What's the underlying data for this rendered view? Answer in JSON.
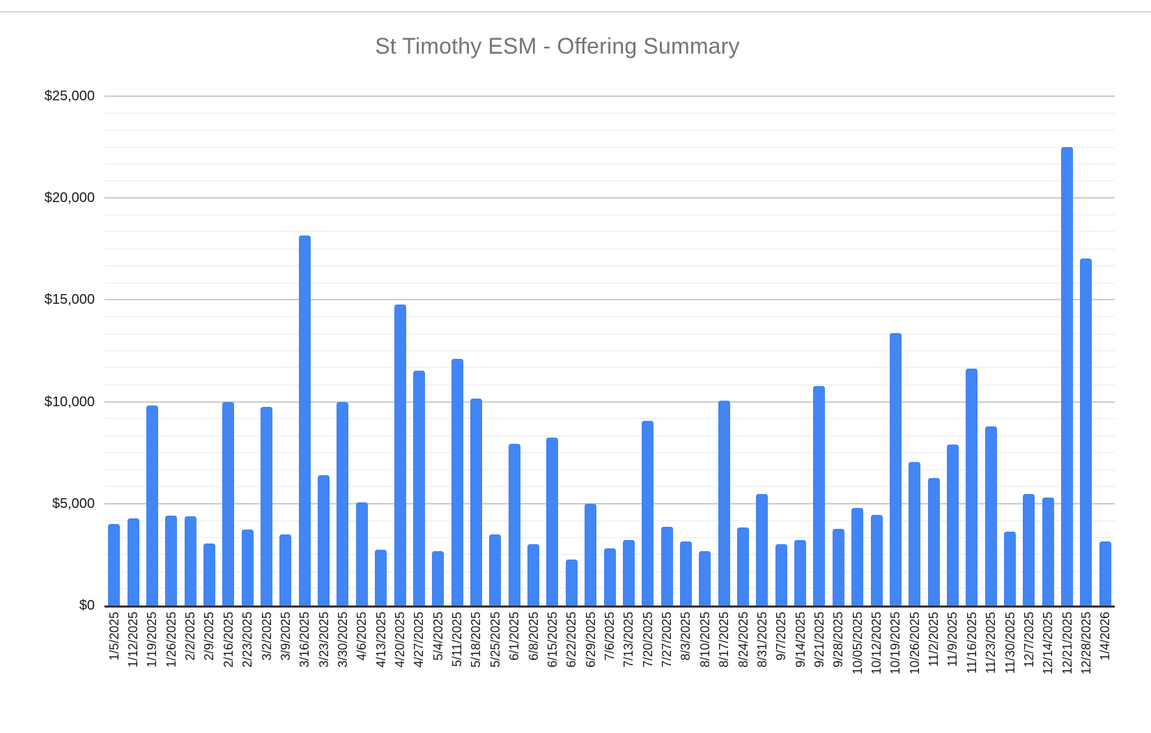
{
  "title": "St Timothy ESM - Offering Summary",
  "colors": {
    "bar": "#4285f4",
    "title_text": "#757575",
    "axis_text": "#1a1a1a",
    "major_gridline": "#cbcbcb",
    "minor_gridline": "#e9e9e9",
    "zero_axis": "#333333",
    "background": "#ffffff"
  },
  "chart_data": {
    "type": "bar",
    "title": "St Timothy ESM - Offering Summary",
    "xlabel": "",
    "ylabel": "",
    "ylim": [
      0,
      25000
    ],
    "y_major_step": 5000,
    "y_minor_divisions_per_major": 6,
    "y_tick_labels": [
      "$0",
      "$5,000",
      "$10,000",
      "$15,000",
      "$20,000",
      "$25,000"
    ],
    "grid": true,
    "legend_position": "none",
    "categories": [
      "1/5/2025",
      "1/12/2025",
      "1/19/2025",
      "1/26/2025",
      "2/2/2025",
      "2/9/2025",
      "2/16/2025",
      "2/23/2025",
      "3/2/2025",
      "3/9/2025",
      "3/16/2025",
      "3/23/2025",
      "3/30/2025",
      "4/6/2025",
      "4/13/2025",
      "4/20/2025",
      "4/27/2025",
      "5/4/2025",
      "5/11/2025",
      "5/18/2025",
      "5/25/2025",
      "6/1/2025",
      "6/8/2025",
      "6/15/2025",
      "6/22/2025",
      "6/29/2025",
      "7/6/2025",
      "7/13/2025",
      "7/20/2025",
      "7/27/2025",
      "8/3/2025",
      "8/10/2025",
      "8/17/2025",
      "8/24/2025",
      "8/31/2025",
      "9/7/2025",
      "9/14/2025",
      "9/21/2025",
      "9/28/2025",
      "10/05/2025",
      "10/12/2025",
      "10/19/2025",
      "10/26/2025",
      "11/2/2025",
      "11/9/2025",
      "11/16/2025",
      "11/23/2025",
      "11/30/2025",
      "12/7/2025",
      "12/14/2025",
      "12/21/2025",
      "12/28/2025",
      "1/4/2026"
    ],
    "values": [
      4000,
      4280,
      9810,
      4400,
      4370,
      3030,
      10000,
      3740,
      9760,
      3480,
      18170,
      6390,
      10000,
      5050,
      2740,
      14770,
      11540,
      2660,
      12100,
      10150,
      3490,
      7950,
      3000,
      8240,
      2260,
      5000,
      2800,
      3220,
      9050,
      3850,
      3140,
      2680,
      10060,
      3840,
      5470,
      3010,
      3210,
      10760,
      3760,
      4790,
      4440,
      13370,
      7040,
      6260,
      7900,
      11620,
      8790,
      3630,
      5470,
      5290,
      22520,
      17030,
      3150
    ]
  }
}
